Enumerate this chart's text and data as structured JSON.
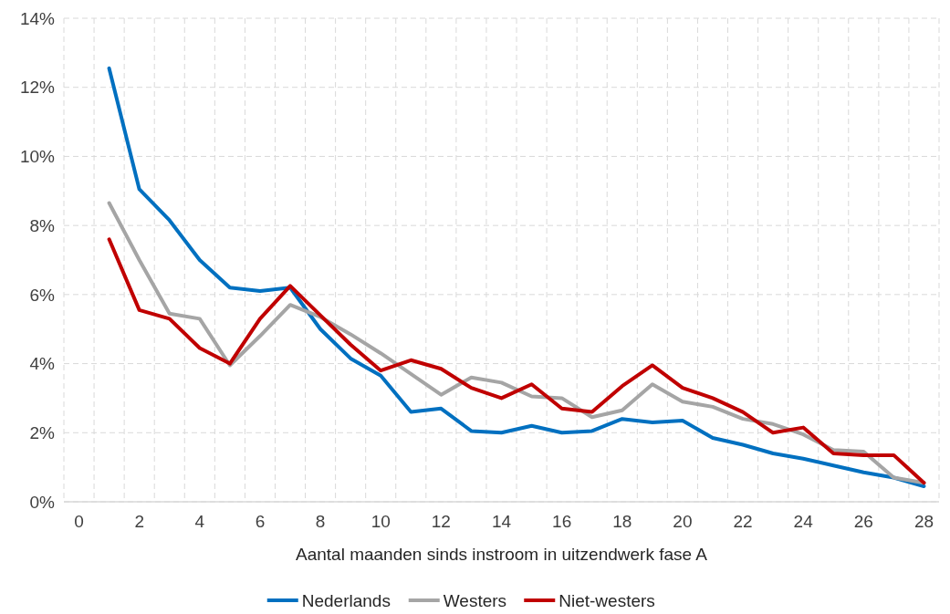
{
  "chart_data": {
    "type": "line",
    "xlabel": "Aantal maanden sinds instroom in uitzendwerk fase A",
    "x": [
      1,
      2,
      3,
      4,
      5,
      6,
      7,
      8,
      9,
      10,
      11,
      12,
      13,
      14,
      15,
      16,
      17,
      18,
      19,
      20,
      21,
      22,
      23,
      24,
      25,
      26,
      27,
      28
    ],
    "xlim": [
      -0.5,
      28.5
    ],
    "xticks": [
      0,
      2,
      4,
      6,
      8,
      10,
      12,
      14,
      16,
      18,
      20,
      22,
      24,
      26,
      28,
      {
        "value": -0.5,
        "label": null
      },
      {
        "value": 0.5,
        "label": null
      },
      {
        "value": 1.5,
        "label": null
      },
      {
        "value": 2.5,
        "label": null
      },
      {
        "value": 3.5,
        "label": null
      },
      {
        "value": 4.5,
        "label": null
      },
      {
        "value": 5.5,
        "label": null
      },
      {
        "value": 6.5,
        "label": null
      },
      {
        "value": 7.5,
        "label": null
      },
      {
        "value": 8.5,
        "label": null
      },
      {
        "value": 9.5,
        "label": null
      },
      {
        "value": 10.5,
        "label": null
      },
      {
        "value": 11.5,
        "label": null
      },
      {
        "value": 12.5,
        "label": null
      },
      {
        "value": 13.5,
        "label": null
      },
      {
        "value": 14.5,
        "label": null
      },
      {
        "value": 15.5,
        "label": null
      },
      {
        "value": 16.5,
        "label": null
      },
      {
        "value": 17.5,
        "label": null
      },
      {
        "value": 18.5,
        "label": null
      },
      {
        "value": 19.5,
        "label": null
      },
      {
        "value": 20.5,
        "label": null
      },
      {
        "value": 21.5,
        "label": null
      },
      {
        "value": 22.5,
        "label": null
      },
      {
        "value": 23.5,
        "label": null
      },
      {
        "value": 24.5,
        "label": null
      },
      {
        "value": 25.5,
        "label": null
      },
      {
        "value": 26.5,
        "label": null
      },
      {
        "value": 27.5,
        "label": null
      },
      {
        "value": 28.5,
        "label": null
      }
    ],
    "series": [
      {
        "name": "Nederlands",
        "color": "#0070c0",
        "values": [
          12.55,
          9.05,
          8.15,
          7.0,
          6.2,
          6.1,
          6.2,
          5.0,
          4.15,
          3.65,
          2.6,
          2.7,
          2.05,
          2.0,
          2.2,
          2.0,
          2.05,
          2.4,
          2.3,
          2.35,
          1.85,
          1.65,
          1.4,
          1.25,
          1.05,
          0.85,
          0.7,
          0.45
        ]
      },
      {
        "name": "Westers",
        "color": "#a5a5a5",
        "values": [
          8.65,
          7.0,
          5.45,
          5.3,
          3.95,
          4.8,
          5.7,
          5.35,
          4.85,
          4.3,
          3.7,
          3.1,
          3.6,
          3.45,
          3.05,
          3.0,
          2.45,
          2.65,
          3.4,
          2.9,
          2.75,
          2.4,
          2.25,
          1.95,
          1.5,
          1.45,
          0.7,
          0.55
        ]
      },
      {
        "name": "Niet-westers",
        "color": "#c00000",
        "values": [
          7.6,
          5.55,
          5.3,
          4.45,
          4.0,
          5.3,
          6.25,
          5.4,
          4.55,
          3.8,
          4.1,
          3.85,
          3.3,
          3.0,
          3.4,
          2.7,
          2.6,
          3.35,
          3.95,
          3.3,
          3.0,
          2.6,
          2.0,
          2.15,
          1.4,
          1.35,
          1.35,
          0.55
        ]
      }
    ],
    "ylim": [
      0,
      14
    ],
    "yticks": [
      {
        "value": 0,
        "label": "0%"
      },
      {
        "value": 2,
        "label": "2%"
      },
      {
        "value": 4,
        "label": "4%"
      },
      {
        "value": 6,
        "label": "6%"
      },
      {
        "value": 8,
        "label": "8%"
      },
      {
        "value": 10,
        "label": "10%"
      },
      {
        "value": 12,
        "label": "12%"
      },
      {
        "value": 14,
        "label": "14%"
      }
    ],
    "grid": true,
    "legend": "bottom",
    "marker": "none",
    "line_style": "solid"
  }
}
